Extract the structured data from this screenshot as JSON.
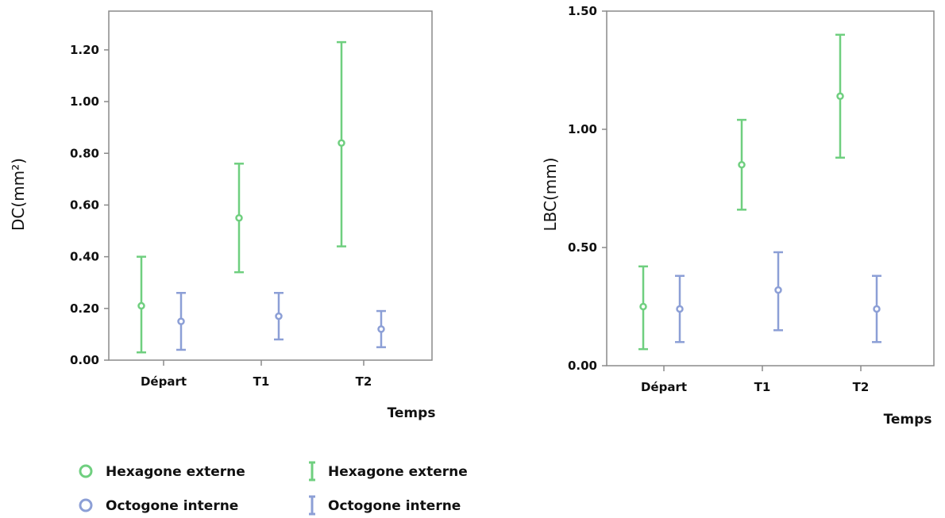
{
  "colors": {
    "hexagone": "#6fcf7f",
    "octogone": "#8c9fd6",
    "frame": "#8a8a8a"
  },
  "legend": {
    "markers": [
      {
        "label": "Hexagone externe",
        "series": "hexagone",
        "icon": "circle-marker-icon"
      },
      {
        "label": "Octogone interne",
        "series": "octogone",
        "icon": "circle-marker-icon"
      }
    ],
    "errorbars": [
      {
        "label": "Hexagone externe",
        "series": "hexagone",
        "icon": "error-bar-icon"
      },
      {
        "label": "Octogone interne",
        "series": "octogone",
        "icon": "error-bar-icon"
      }
    ]
  },
  "chart_data": [
    {
      "type": "scatter",
      "subtype": "error-bar",
      "categories": [
        "Départ",
        "T1",
        "T2"
      ],
      "xlabel": "Temps",
      "ylabel": "DC(mm²)",
      "ylim": [
        0,
        1.35
      ],
      "yticks": [
        0.0,
        0.2,
        0.4,
        0.6,
        0.8,
        1.0,
        1.2
      ],
      "ytick_labels": [
        "0.00",
        "0.20",
        "0.40",
        "0.60",
        "0.80",
        "1.00",
        "1.20"
      ],
      "grid": false,
      "series": [
        {
          "name": "Hexagone externe",
          "key": "hexagone",
          "mean": [
            0.21,
            0.55,
            0.84
          ],
          "lower": [
            0.03,
            0.34,
            0.44
          ],
          "upper": [
            0.4,
            0.76,
            1.23
          ]
        },
        {
          "name": "Octogone interne",
          "key": "octogone",
          "mean": [
            0.15,
            0.17,
            0.12
          ],
          "lower": [
            0.04,
            0.08,
            0.05
          ],
          "upper": [
            0.26,
            0.26,
            0.19
          ]
        }
      ]
    },
    {
      "type": "scatter",
      "subtype": "error-bar",
      "categories": [
        "Départ",
        "T1",
        "T2"
      ],
      "xlabel": "Temps",
      "ylabel": "LBC(mm)",
      "ylim": [
        0,
        1.5
      ],
      "yticks": [
        0.0,
        0.5,
        1.0,
        1.5
      ],
      "ytick_labels": [
        "0.00",
        "0.50",
        "1.00",
        "1.50"
      ],
      "grid": false,
      "series": [
        {
          "name": "Hexagone externe",
          "key": "hexagone",
          "mean": [
            0.25,
            0.85,
            1.14
          ],
          "lower": [
            0.07,
            0.66,
            0.88
          ],
          "upper": [
            0.42,
            1.04,
            1.4
          ]
        },
        {
          "name": "Octogone interne",
          "key": "octogone",
          "mean": [
            0.24,
            0.32,
            0.24
          ],
          "lower": [
            0.1,
            0.15,
            0.1
          ],
          "upper": [
            0.38,
            0.48,
            0.38
          ]
        }
      ]
    }
  ]
}
